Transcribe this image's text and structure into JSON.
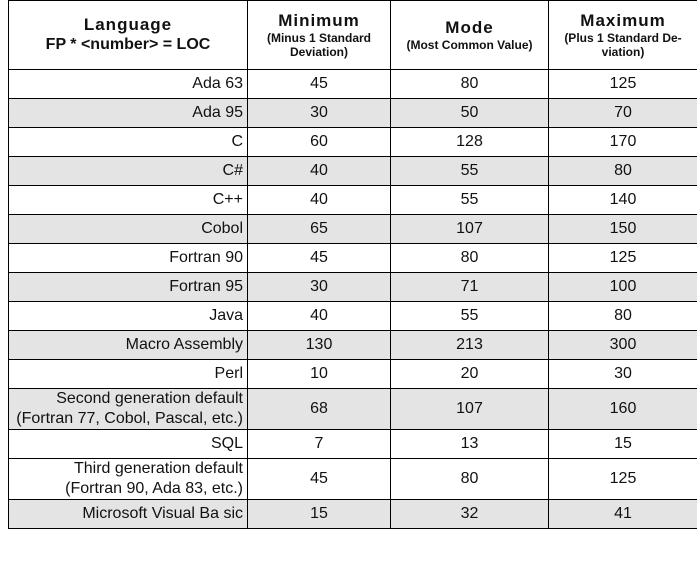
{
  "table": {
    "header": [
      {
        "title": "Language",
        "sub": [
          "FP * <number> = LOC"
        ]
      },
      {
        "title": "Minimum",
        "sub": [
          "(Minus 1 Standard",
          "Deviation)"
        ]
      },
      {
        "title": "Mode",
        "sub": [
          "(Most Common Value)"
        ]
      },
      {
        "title": "Maximum",
        "sub": [
          "(Plus 1 Standard De-",
          "viation)"
        ]
      }
    ],
    "rows": [
      [
        "Ada 63",
        45,
        80,
        125
      ],
      [
        "Ada 95",
        30,
        50,
        70
      ],
      [
        "C",
        60,
        128,
        170
      ],
      [
        "C#",
        40,
        55,
        80
      ],
      [
        "C++",
        40,
        55,
        140
      ],
      [
        "Cobol",
        65,
        107,
        150
      ],
      [
        "Fortran 90",
        45,
        80,
        125
      ],
      [
        "Fortran 95",
        30,
        71,
        100
      ],
      [
        "Java",
        40,
        55,
        80
      ],
      [
        "Macro Assembly",
        130,
        213,
        300
      ],
      [
        "Perl",
        10,
        20,
        30
      ],
      [
        "Second generation default (Fortran 77, Cobol, Pascal, etc.)",
        68,
        107,
        160
      ],
      [
        "SQL",
        7,
        13,
        15
      ],
      [
        "Third generation default (Fortran 90, Ada 83, etc.)",
        45,
        80,
        125
      ],
      [
        "Microsoft Visual Ba sic",
        15,
        32,
        41
      ]
    ]
  }
}
